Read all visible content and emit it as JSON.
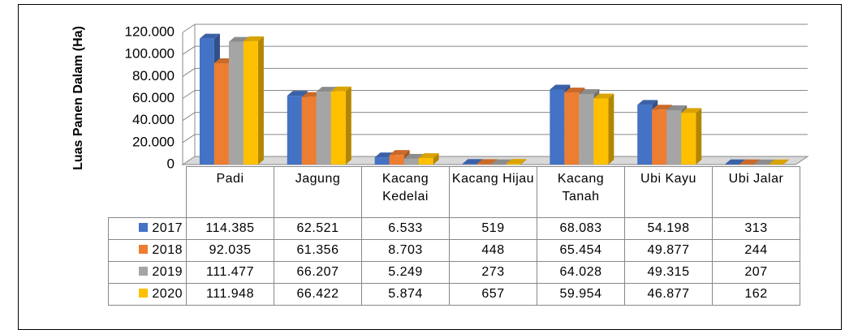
{
  "chart_data": {
    "type": "bar3d",
    "y_label": "Luas Panen Dalam (Ha)",
    "categories": [
      "Padi",
      "Jagung",
      "Kacang Kedelai",
      "Kacang Hijau",
      "Kacang Tanah",
      "Ubi Kayu",
      "Ubi Jalar"
    ],
    "series": [
      {
        "name": "2017",
        "color": "#4472c4",
        "values": [
          114385,
          62521,
          6533,
          519,
          68083,
          54198,
          313
        ],
        "value_labels": [
          "114.385",
          "62.521",
          "6.533",
          "519",
          "68.083",
          "54.198",
          "313"
        ]
      },
      {
        "name": "2018",
        "color": "#ed7d31",
        "values": [
          92035,
          61356,
          8703,
          448,
          65454,
          49877,
          244
        ],
        "value_labels": [
          "92.035",
          "61.356",
          "8.703",
          "448",
          "65.454",
          "49.877",
          "244"
        ]
      },
      {
        "name": "2019",
        "color": "#a5a5a5",
        "values": [
          111477,
          66207,
          5249,
          273,
          64028,
          49315,
          207
        ],
        "value_labels": [
          "111.477",
          "66.207",
          "5.249",
          "273",
          "64.028",
          "49.315",
          "207"
        ]
      },
      {
        "name": "2020",
        "color": "#ffc000",
        "values": [
          111948,
          66422,
          5874,
          657,
          59954,
          46877,
          162
        ],
        "value_labels": [
          "111.948",
          "66.422",
          "5.874",
          "657",
          "59.954",
          "46.877",
          "162"
        ]
      }
    ],
    "ylim": [
      0,
      120000
    ],
    "yticks": [
      0,
      {
        "value": 20000,
        "label": "20.000"
      },
      {
        "value": 40000,
        "label": "40.000"
      },
      {
        "value": 60000,
        "label": "60.000"
      },
      {
        "value": 80000,
        "label": "80.000"
      },
      {
        "value": 100000,
        "label": "100.000"
      },
      {
        "value": 120000,
        "label": "120.000"
      }
    ],
    "grid": true,
    "legend": "table"
  }
}
